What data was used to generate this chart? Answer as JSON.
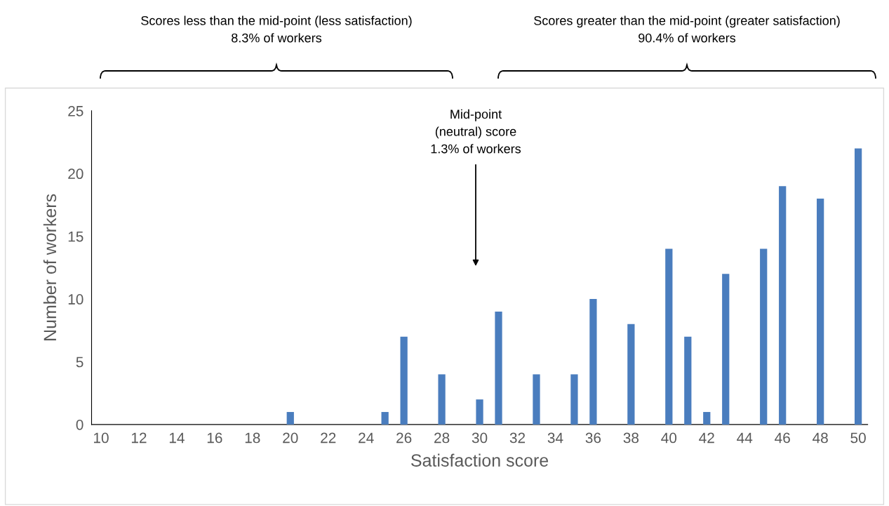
{
  "chart_data": {
    "type": "bar",
    "x": [
      20,
      25,
      26,
      28,
      30,
      31,
      33,
      35,
      36,
      38,
      40,
      41,
      42,
      43,
      45,
      46,
      48,
      50
    ],
    "values": [
      1,
      1,
      7,
      4,
      2,
      9,
      4,
      4,
      10,
      8,
      14,
      7,
      1,
      12,
      14,
      19,
      18,
      22
    ],
    "color": "#4a7dbe",
    "xlabel": "Satisfaction score",
    "ylabel": "Number of workers",
    "xlim": [
      9.5,
      50.5
    ],
    "xticks": [
      10,
      12,
      14,
      16,
      18,
      20,
      22,
      24,
      26,
      28,
      30,
      32,
      34,
      36,
      38,
      40,
      42,
      44,
      46,
      48,
      50
    ],
    "ylim": [
      0,
      25
    ],
    "yticks": [
      0,
      5,
      10,
      15,
      20,
      25
    ],
    "grid": false,
    "legend": false,
    "annotations": [
      "Scores less than the mid-point (less satisfaction)\n8.3% of workers",
      "Scores greater than the mid-point (greater satisfaction)\n90.4% of workers",
      "Mid-point\n(neutral) score\n1.3% of workers"
    ]
  }
}
